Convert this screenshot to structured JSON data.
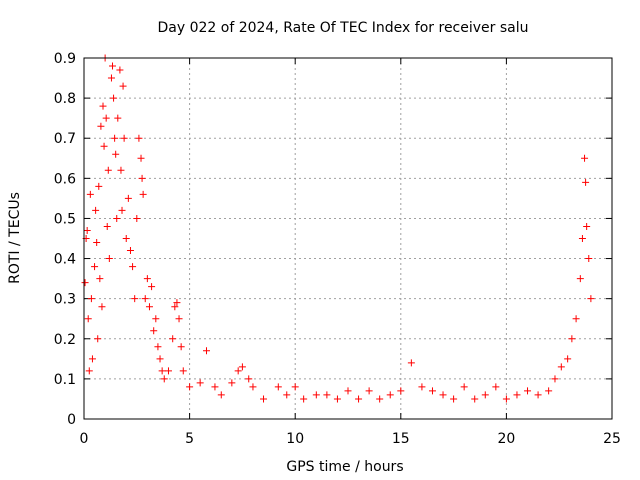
{
  "chart_data": {
    "type": "scatter",
    "title": "Day 022 of 2024, Rate Of TEC Index for receiver salu",
    "xlabel": "GPS time / hours",
    "ylabel": "ROTI / TECUs",
    "xlim": [
      0,
      25
    ],
    "ylim": [
      0,
      0.9
    ],
    "xticks": [
      0,
      5,
      10,
      15,
      20,
      25
    ],
    "yticks": [
      0,
      0.1,
      0.2,
      0.3,
      0.4,
      0.5,
      0.6,
      0.7,
      0.8,
      0.9
    ],
    "grid": true,
    "marker": "+",
    "color": "#ff0000",
    "series": [
      {
        "name": "ROTI",
        "points": [
          [
            0.05,
            0.34
          ],
          [
            0.1,
            0.45
          ],
          [
            0.15,
            0.47
          ],
          [
            0.2,
            0.25
          ],
          [
            0.25,
            0.12
          ],
          [
            0.3,
            0.56
          ],
          [
            0.35,
            0.3
          ],
          [
            0.4,
            0.15
          ],
          [
            0.5,
            0.38
          ],
          [
            0.55,
            0.52
          ],
          [
            0.6,
            0.44
          ],
          [
            0.65,
            0.2
          ],
          [
            0.7,
            0.58
          ],
          [
            0.75,
            0.35
          ],
          [
            0.8,
            0.73
          ],
          [
            0.85,
            0.28
          ],
          [
            0.9,
            0.78
          ],
          [
            0.95,
            0.68
          ],
          [
            1.0,
            0.9
          ],
          [
            1.05,
            0.75
          ],
          [
            1.1,
            0.48
          ],
          [
            1.15,
            0.62
          ],
          [
            1.2,
            0.4
          ],
          [
            1.3,
            0.85
          ],
          [
            1.35,
            0.88
          ],
          [
            1.4,
            0.8
          ],
          [
            1.45,
            0.7
          ],
          [
            1.5,
            0.66
          ],
          [
            1.55,
            0.5
          ],
          [
            1.6,
            0.75
          ],
          [
            1.7,
            0.87
          ],
          [
            1.75,
            0.62
          ],
          [
            1.8,
            0.52
          ],
          [
            1.85,
            0.83
          ],
          [
            1.9,
            0.7
          ],
          [
            2.0,
            0.45
          ],
          [
            2.1,
            0.55
          ],
          [
            2.2,
            0.42
          ],
          [
            2.3,
            0.38
          ],
          [
            2.4,
            0.3
          ],
          [
            2.5,
            0.5
          ],
          [
            2.6,
            0.7
          ],
          [
            2.7,
            0.65
          ],
          [
            2.75,
            0.6
          ],
          [
            2.8,
            0.56
          ],
          [
            2.9,
            0.3
          ],
          [
            3.0,
            0.35
          ],
          [
            3.1,
            0.28
          ],
          [
            3.2,
            0.33
          ],
          [
            3.3,
            0.22
          ],
          [
            3.4,
            0.25
          ],
          [
            3.5,
            0.18
          ],
          [
            3.6,
            0.15
          ],
          [
            3.7,
            0.12
          ],
          [
            3.8,
            0.1
          ],
          [
            4.0,
            0.12
          ],
          [
            4.2,
            0.2
          ],
          [
            4.3,
            0.28
          ],
          [
            4.4,
            0.29
          ],
          [
            4.5,
            0.25
          ],
          [
            4.6,
            0.18
          ],
          [
            4.7,
            0.12
          ],
          [
            5.0,
            0.08
          ],
          [
            5.5,
            0.09
          ],
          [
            5.8,
            0.17
          ],
          [
            6.2,
            0.08
          ],
          [
            6.5,
            0.06
          ],
          [
            7.0,
            0.09
          ],
          [
            7.3,
            0.12
          ],
          [
            7.5,
            0.13
          ],
          [
            7.8,
            0.1
          ],
          [
            8.0,
            0.08
          ],
          [
            8.5,
            0.05
          ],
          [
            9.2,
            0.08
          ],
          [
            9.6,
            0.06
          ],
          [
            10.0,
            0.08
          ],
          [
            10.4,
            0.05
          ],
          [
            11.0,
            0.06
          ],
          [
            11.5,
            0.06
          ],
          [
            12.0,
            0.05
          ],
          [
            12.5,
            0.07
          ],
          [
            13.0,
            0.05
          ],
          [
            13.5,
            0.07
          ],
          [
            14.0,
            0.05
          ],
          [
            14.5,
            0.06
          ],
          [
            15.0,
            0.07
          ],
          [
            15.5,
            0.14
          ],
          [
            16.0,
            0.08
          ],
          [
            16.5,
            0.07
          ],
          [
            17.0,
            0.06
          ],
          [
            17.5,
            0.05
          ],
          [
            18.0,
            0.08
          ],
          [
            18.5,
            0.05
          ],
          [
            19.0,
            0.06
          ],
          [
            19.5,
            0.08
          ],
          [
            20.0,
            0.05
          ],
          [
            20.5,
            0.06
          ],
          [
            21.0,
            0.07
          ],
          [
            21.5,
            0.06
          ],
          [
            22.0,
            0.07
          ],
          [
            22.3,
            0.1
          ],
          [
            22.6,
            0.13
          ],
          [
            22.9,
            0.15
          ],
          [
            23.1,
            0.2
          ],
          [
            23.3,
            0.25
          ],
          [
            23.5,
            0.35
          ],
          [
            23.6,
            0.45
          ],
          [
            23.7,
            0.65
          ],
          [
            23.75,
            0.59
          ],
          [
            23.8,
            0.48
          ],
          [
            23.9,
            0.4
          ],
          [
            24.0,
            0.3
          ]
        ]
      }
    ]
  }
}
